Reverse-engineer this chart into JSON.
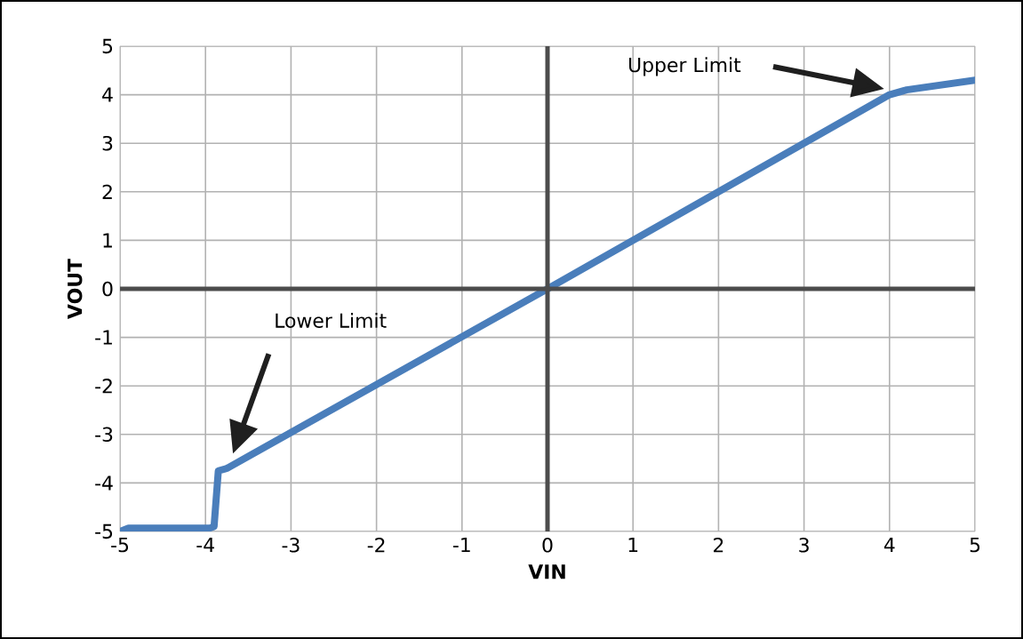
{
  "chart_data": {
    "type": "line",
    "xlabel": "VIN",
    "ylabel": "VOUT",
    "x": [
      -5,
      -4.9,
      -3.95,
      -3.9,
      -3.85,
      -3.75,
      0,
      4,
      4.2,
      5
    ],
    "series": [
      {
        "color": "#4a7ebb",
        "values": [
          -5,
          -4.93,
          -4.93,
          -4.9,
          -3.75,
          -3.7,
          0,
          4,
          4.1,
          4.3
        ]
      }
    ],
    "xlim": [
      -5,
      5
    ],
    "ylim": [
      -5,
      5
    ],
    "xticks": [
      -5,
      -4,
      -3,
      -2,
      -1,
      0,
      1,
      2,
      3,
      4,
      5
    ],
    "yticks": [
      -5,
      -4,
      -3,
      -2,
      -1,
      0,
      1,
      2,
      3,
      4,
      5
    ],
    "grid": true,
    "marker": "none",
    "line_style": "solid",
    "annotations": [
      "Upper Limit",
      "Lower Limit"
    ]
  }
}
